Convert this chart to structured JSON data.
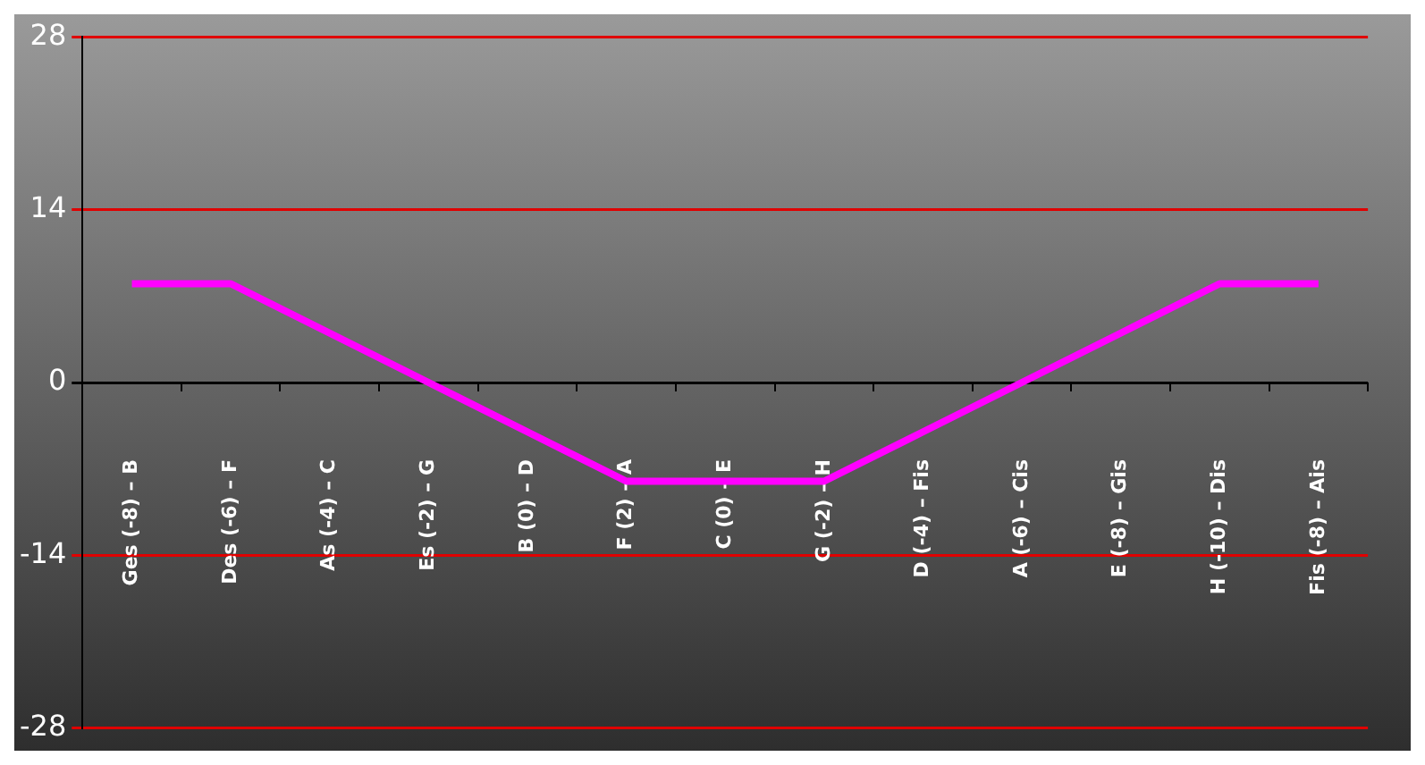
{
  "chart_data": {
    "type": "line",
    "categories": [
      "Ges (-8) – B",
      "Des (-6) – F",
      "As (-4) – C",
      "Es (-2) – G",
      "B (0) – D",
      "F (2) – A",
      "C (0) – E",
      "G (-2) – H",
      "D (-4) – Fis",
      "A (-6) – Cis",
      "E (-8) – Gis",
      "H (-10) – Dis",
      "Fis (-8) – Ais"
    ],
    "series": [
      {
        "color": "#ff00ff",
        "values": [
          8,
          8,
          4,
          0,
          -4,
          -8,
          -8,
          -8,
          -4,
          0,
          4,
          8,
          8
        ]
      }
    ],
    "ylim": [
      -28,
      28
    ],
    "yticks": [
      -28,
      -14,
      0,
      14,
      28
    ],
    "grid": "y",
    "legend": false,
    "marker": "none",
    "line_style": "solid"
  }
}
